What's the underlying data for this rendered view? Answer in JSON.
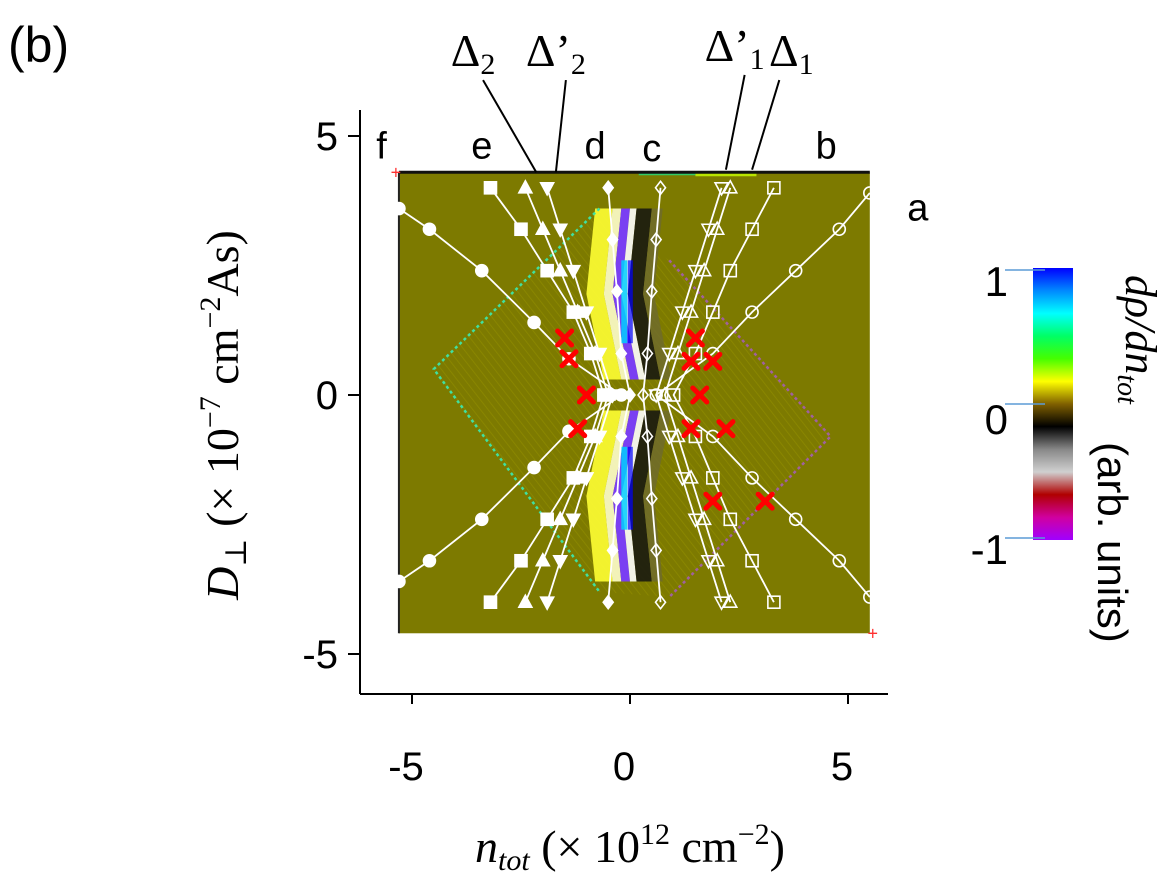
{
  "panel_label": "(b)",
  "chart_data": {
    "type": "heatmap",
    "title": "",
    "xlabel": {
      "prefix": "n",
      "sub": "tot",
      "rest": " (× 10",
      "sup": "12",
      "unit": " cm",
      "unit_sup": "−2",
      "close": ")"
    },
    "ylabel": {
      "prefix": "D",
      "sub": "⊥",
      "rest": " (× 10",
      "sup": "−7",
      "unit": " cm",
      "unit_sup": "−2",
      "tail": "As)"
    },
    "xlim": [
      -5.5,
      6.0
    ],
    "ylim": [
      -5.8,
      5.4
    ],
    "x_ticks": [
      {
        "value": -5,
        "label": "-5"
      },
      {
        "value": 0,
        "label": "0"
      },
      {
        "value": 5,
        "label": "5"
      }
    ],
    "y_ticks": [
      {
        "value": 5,
        "label": "5"
      },
      {
        "value": 0,
        "label": "0"
      },
      {
        "value": -5,
        "label": "-5"
      }
    ],
    "map_extent": {
      "x": [
        -5.3,
        5.5
      ],
      "y": [
        -4.6,
        4.3
      ]
    },
    "background_color": "#7d7a00",
    "colorbar": {
      "label_main": "dρ/dn",
      "label_sub": "tot",
      "label_units": "(arb. units)",
      "ticks": [
        {
          "value": 1,
          "label": "1"
        },
        {
          "value": 0,
          "label": "0"
        },
        {
          "value": -1,
          "label": "-1"
        }
      ],
      "stops": [
        "#0000ff",
        "#0088ff",
        "#00ffff",
        "#00ff66",
        "#44ff00",
        "#ffff00",
        "#806000",
        "#000000",
        "#888888",
        "#d0d0d0",
        "#b00000",
        "#d000a0",
        "#a000ff"
      ]
    },
    "region_labels": [
      {
        "text": "f",
        "x": -5.7,
        "y": 4.8
      },
      {
        "text": "e",
        "x": -3.4,
        "y": 4.8
      },
      {
        "text": "d",
        "x": -0.8,
        "y": 4.8
      },
      {
        "text": "c",
        "x": 0.5,
        "y": 4.75
      },
      {
        "text": "b",
        "x": 4.5,
        "y": 4.8
      },
      {
        "text": "a",
        "x": 6.6,
        "y": 3.6
      }
    ],
    "gap_labels": [
      {
        "text": "Δ",
        "sub": "2",
        "label_x": -3.6,
        "label_y": 6.35,
        "tip_x": -2.15,
        "tip_y": 4.3
      },
      {
        "text": "Δ’",
        "sub": "2",
        "label_x": -1.7,
        "label_y": 6.35,
        "tip_x": -1.7,
        "tip_y": 4.3
      },
      {
        "text": "Δ’",
        "sub": "1",
        "label_x": 2.4,
        "label_y": 6.45,
        "tip_x": 2.2,
        "tip_y": 4.35
      },
      {
        "text": "Δ",
        "sub": "1",
        "label_x": 3.7,
        "label_y": 6.35,
        "tip_x": 2.8,
        "tip_y": 4.35
      }
    ],
    "diamond_left": [
      [
        -0.7,
        3.6
      ],
      [
        -4.5,
        0.5
      ],
      [
        -0.7,
        -3.8
      ]
    ],
    "diamond_right": [
      [
        0.9,
        2.6
      ],
      [
        4.6,
        -0.8
      ],
      [
        0.9,
        -3.9
      ]
    ],
    "series": [
      {
        "marker": "circle",
        "fill": true,
        "points": [
          [
            -5.3,
            3.6
          ],
          [
            -4.6,
            3.2
          ],
          [
            -3.4,
            2.4
          ],
          [
            -2.2,
            1.4
          ],
          [
            -1.4,
            0.7
          ],
          [
            -0.2,
            0.0
          ],
          [
            -1.4,
            -0.7
          ],
          [
            -2.2,
            -1.4
          ],
          [
            -3.4,
            -2.4
          ],
          [
            -4.6,
            -3.2
          ],
          [
            -5.3,
            -3.6
          ]
        ]
      },
      {
        "marker": "square",
        "fill": true,
        "points": [
          [
            -3.2,
            4.0
          ],
          [
            -2.5,
            3.2
          ],
          [
            -1.9,
            2.4
          ],
          [
            -1.3,
            1.6
          ],
          [
            -0.9,
            0.8
          ],
          [
            -0.6,
            0.0
          ],
          [
            -0.9,
            -0.8
          ],
          [
            -1.3,
            -1.6
          ],
          [
            -1.9,
            -2.4
          ],
          [
            -2.5,
            -3.2
          ],
          [
            -3.2,
            -4.0
          ]
        ]
      },
      {
        "marker": "triangle-up",
        "fill": true,
        "points": [
          [
            -2.4,
            4.0
          ],
          [
            -2.0,
            3.2
          ],
          [
            -1.6,
            2.4
          ],
          [
            -1.2,
            1.6
          ],
          [
            -0.8,
            0.8
          ],
          [
            -0.5,
            0.0
          ],
          [
            -0.8,
            -0.8
          ],
          [
            -1.2,
            -1.6
          ],
          [
            -1.6,
            -2.4
          ],
          [
            -2.0,
            -3.2
          ],
          [
            -2.4,
            -4.0
          ]
        ]
      },
      {
        "marker": "triangle-down",
        "fill": true,
        "points": [
          [
            -1.9,
            4.0
          ],
          [
            -1.6,
            3.2
          ],
          [
            -1.3,
            2.4
          ],
          [
            -1.0,
            1.6
          ],
          [
            -0.7,
            0.8
          ],
          [
            -0.4,
            0.0
          ],
          [
            -0.7,
            -0.8
          ],
          [
            -1.0,
            -1.6
          ],
          [
            -1.3,
            -2.4
          ],
          [
            -1.6,
            -3.2
          ],
          [
            -1.9,
            -4.0
          ]
        ]
      },
      {
        "marker": "diamond",
        "fill": true,
        "points": [
          [
            -0.5,
            4.0
          ],
          [
            -0.4,
            3.0
          ],
          [
            -0.3,
            2.0
          ],
          [
            -0.2,
            0.8
          ],
          [
            0.0,
            0.0
          ],
          [
            -0.2,
            -0.8
          ],
          [
            -0.3,
            -2.0
          ],
          [
            -0.4,
            -3.0
          ],
          [
            -0.5,
            -4.0
          ]
        ]
      },
      {
        "marker": "diamond",
        "fill": false,
        "points": [
          [
            0.7,
            4.0
          ],
          [
            0.6,
            3.0
          ],
          [
            0.5,
            2.0
          ],
          [
            0.4,
            0.8
          ],
          [
            0.3,
            0.0
          ],
          [
            0.4,
            -0.8
          ],
          [
            0.5,
            -2.0
          ],
          [
            0.6,
            -3.0
          ],
          [
            0.7,
            -4.0
          ]
        ]
      },
      {
        "marker": "triangle-down",
        "fill": false,
        "points": [
          [
            2.1,
            4.0
          ],
          [
            1.8,
            3.2
          ],
          [
            1.5,
            2.4
          ],
          [
            1.2,
            1.6
          ],
          [
            0.9,
            0.8
          ],
          [
            0.6,
            0.0
          ],
          [
            0.9,
            -0.8
          ],
          [
            1.2,
            -1.6
          ],
          [
            1.5,
            -2.4
          ],
          [
            1.8,
            -3.2
          ],
          [
            2.1,
            -4.0
          ]
        ]
      },
      {
        "marker": "triangle-up",
        "fill": false,
        "points": [
          [
            2.3,
            4.0
          ],
          [
            2.0,
            3.2
          ],
          [
            1.7,
            2.4
          ],
          [
            1.4,
            1.6
          ],
          [
            1.1,
            0.8
          ],
          [
            0.8,
            0.0
          ],
          [
            1.1,
            -0.8
          ],
          [
            1.4,
            -1.6
          ],
          [
            1.7,
            -2.4
          ],
          [
            2.0,
            -3.2
          ],
          [
            2.3,
            -4.0
          ]
        ]
      },
      {
        "marker": "square",
        "fill": false,
        "points": [
          [
            3.3,
            4.0
          ],
          [
            2.8,
            3.2
          ],
          [
            2.3,
            2.4
          ],
          [
            1.9,
            1.6
          ],
          [
            1.5,
            0.8
          ],
          [
            1.0,
            0.0
          ],
          [
            1.5,
            -0.8
          ],
          [
            1.9,
            -1.6
          ],
          [
            2.3,
            -2.4
          ],
          [
            2.8,
            -3.2
          ],
          [
            3.3,
            -4.0
          ]
        ]
      },
      {
        "marker": "circle",
        "fill": false,
        "points": [
          [
            5.5,
            3.9
          ],
          [
            4.8,
            3.2
          ],
          [
            3.8,
            2.4
          ],
          [
            2.8,
            1.6
          ],
          [
            1.9,
            0.8
          ],
          [
            0.6,
            0.0
          ],
          [
            1.9,
            -0.8
          ],
          [
            2.8,
            -1.6
          ],
          [
            3.8,
            -2.4
          ],
          [
            4.8,
            -3.2
          ],
          [
            5.5,
            -3.9
          ]
        ]
      }
    ],
    "crosses": [
      [
        -1.5,
        1.1
      ],
      [
        -1.4,
        0.7
      ],
      [
        -1.0,
        0.0
      ],
      [
        -1.2,
        -0.65
      ],
      [
        1.5,
        1.1
      ],
      [
        1.4,
        0.65
      ],
      [
        1.9,
        0.65
      ],
      [
        1.6,
        0.0
      ],
      [
        1.4,
        -0.65
      ],
      [
        2.2,
        -0.65
      ],
      [
        1.9,
        -2.05
      ],
      [
        3.1,
        -2.05
      ]
    ],
    "cross_color": "#ff0000"
  }
}
